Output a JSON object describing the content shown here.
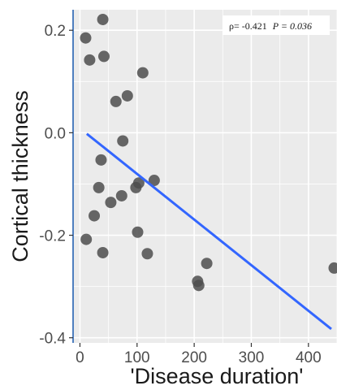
{
  "colors": {
    "panel_background": "#ebebeb",
    "grid_line": "#ffffff",
    "point_fill": "#4d4d4d",
    "fit_line": "#3366ff",
    "axis_line": "#4f7fbf"
  },
  "chart_data": {
    "type": "scatter",
    "xlabel": "'Disease duration'",
    "ylabel": "Cortical thickness",
    "xlim": [
      -12,
      450
    ],
    "ylim": [
      -0.41,
      0.24
    ],
    "x_ticks": [
      0,
      100,
      200,
      300,
      400
    ],
    "x_tick_labels": [
      "0",
      "100",
      "200",
      "300",
      "400"
    ],
    "y_ticks": [
      -0.4,
      -0.2,
      0.0,
      0.2
    ],
    "y_tick_labels": [
      "-0.4",
      "-0.2",
      "0.0",
      "0.2"
    ],
    "grid": true,
    "annotation": {
      "rho_text": "ρ= -0.421",
      "p_text": "P = 0.036",
      "placement": "top-right"
    },
    "points": [
      {
        "x": 10,
        "y": 0.185
      },
      {
        "x": 17,
        "y": 0.142
      },
      {
        "x": 40,
        "y": 0.221
      },
      {
        "x": 42,
        "y": 0.149
      },
      {
        "x": 110,
        "y": 0.117
      },
      {
        "x": 63,
        "y": 0.061
      },
      {
        "x": 83,
        "y": 0.072
      },
      {
        "x": 75,
        "y": -0.016
      },
      {
        "x": 37,
        "y": -0.053
      },
      {
        "x": 33,
        "y": -0.107
      },
      {
        "x": 73,
        "y": -0.123
      },
      {
        "x": 54,
        "y": -0.136
      },
      {
        "x": 25,
        "y": -0.162
      },
      {
        "x": 103,
        "y": -0.098
      },
      {
        "x": 98,
        "y": -0.107
      },
      {
        "x": 130,
        "y": -0.093
      },
      {
        "x": 101,
        "y": -0.194
      },
      {
        "x": 118,
        "y": -0.236
      },
      {
        "x": 11,
        "y": -0.208
      },
      {
        "x": 40,
        "y": -0.234
      },
      {
        "x": 206,
        "y": -0.29
      },
      {
        "x": 208,
        "y": -0.298
      },
      {
        "x": 222,
        "y": -0.255
      },
      {
        "x": 445,
        "y": -0.264
      }
    ],
    "fit_line": {
      "x": [
        12,
        440
      ],
      "y": [
        -0.002,
        -0.383
      ]
    }
  }
}
